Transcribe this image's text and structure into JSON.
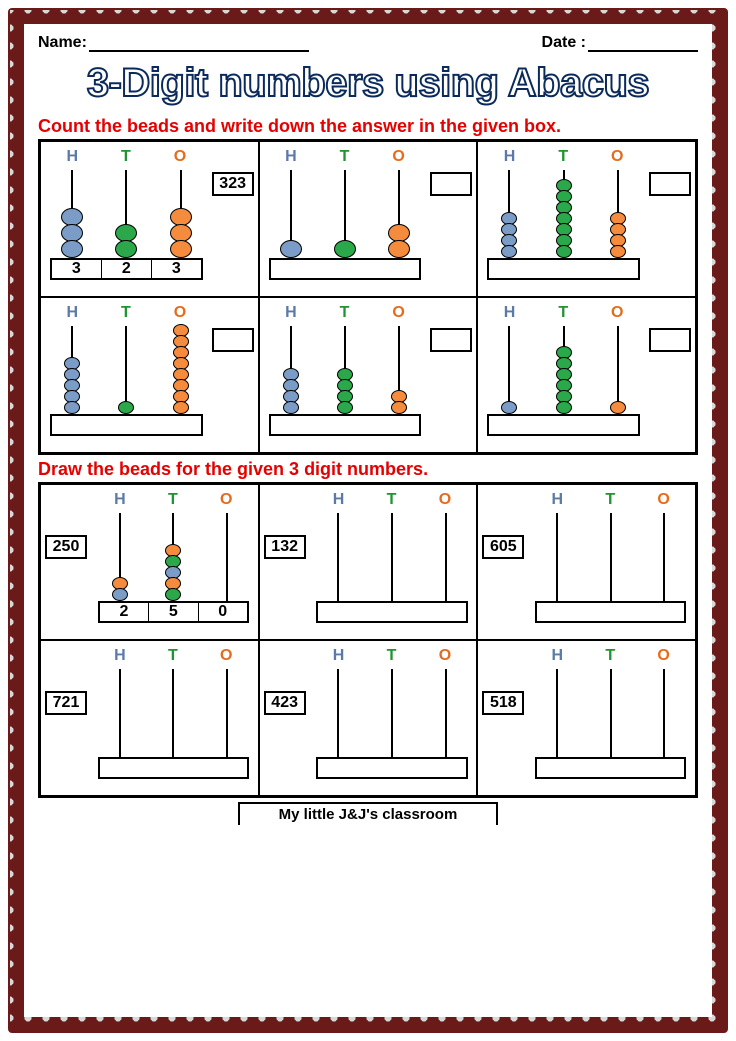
{
  "header": {
    "name_label": "Name:",
    "date_label": "Date :"
  },
  "title": "3-Digit numbers using Abacus",
  "instruction1": "Count the beads and write down the answer in the given box.",
  "instruction2": "Draw the beads for the given 3 digit numbers.",
  "footer": "My little J&J's classroom",
  "hto": {
    "H": "H",
    "T": "T",
    "O": "O"
  },
  "colors": {
    "bead_H": "#7a9cc6",
    "bead_T": "#2ba84a",
    "bead_O": "#f58b3c",
    "label_H": "#5b7aa8",
    "label_T": "#1f9430",
    "label_O": "#e66b1a",
    "instruction": "#e60000",
    "title_stroke": "#0a2a5c",
    "border": "#6b1a1a",
    "dot": "#d8d8d8"
  },
  "section1": [
    {
      "beads": {
        "H": 3,
        "T": 2,
        "O": 3
      },
      "big": true,
      "answer": "323",
      "base_digits": [
        "3",
        "2",
        "3"
      ]
    },
    {
      "beads": {
        "H": 1,
        "T": 1,
        "O": 2
      },
      "big": true,
      "answer": "",
      "base_digits": [
        "",
        "",
        ""
      ]
    },
    {
      "beads": {
        "H": 4,
        "T": 7,
        "O": 4
      },
      "big": false,
      "answer": "",
      "base_digits": [
        "",
        "",
        ""
      ]
    },
    {
      "beads": {
        "H": 5,
        "T": 1,
        "O": 8
      },
      "big": false,
      "answer": "",
      "base_digits": [
        "",
        "",
        ""
      ]
    },
    {
      "beads": {
        "H": 4,
        "T": 4,
        "O": 2
      },
      "big": false,
      "answer": "",
      "base_digits": [
        "",
        "",
        ""
      ]
    },
    {
      "beads": {
        "H": 1,
        "T": 6,
        "O": 1
      },
      "big": false,
      "answer": "",
      "base_digits": [
        "",
        "",
        ""
      ]
    }
  ],
  "section2": [
    {
      "number": "250",
      "beads": {
        "H": 2,
        "T": 5,
        "O": 0
      },
      "base_digits": [
        "2",
        "5",
        "0"
      ],
      "bead_colors": {
        "H": [
          "#7a9cc6",
          "#f58b3c"
        ],
        "T": [
          "#2ba84a",
          "#f58b3c",
          "#7a9cc6",
          "#2ba84a",
          "#f58b3c"
        ],
        "O": []
      }
    },
    {
      "number": "132",
      "beads": {
        "H": 0,
        "T": 0,
        "O": 0
      },
      "base_digits": [
        "",
        "",
        ""
      ]
    },
    {
      "number": "605",
      "beads": {
        "H": 0,
        "T": 0,
        "O": 0
      },
      "base_digits": [
        "",
        "",
        ""
      ]
    },
    {
      "number": "721",
      "beads": {
        "H": 0,
        "T": 0,
        "O": 0
      },
      "base_digits": [
        "",
        "",
        ""
      ]
    },
    {
      "number": "423",
      "beads": {
        "H": 0,
        "T": 0,
        "O": 0
      },
      "base_digits": [
        "",
        "",
        ""
      ]
    },
    {
      "number": "518",
      "beads": {
        "H": 0,
        "T": 0,
        "O": 0
      },
      "base_digits": [
        "",
        "",
        ""
      ]
    }
  ]
}
